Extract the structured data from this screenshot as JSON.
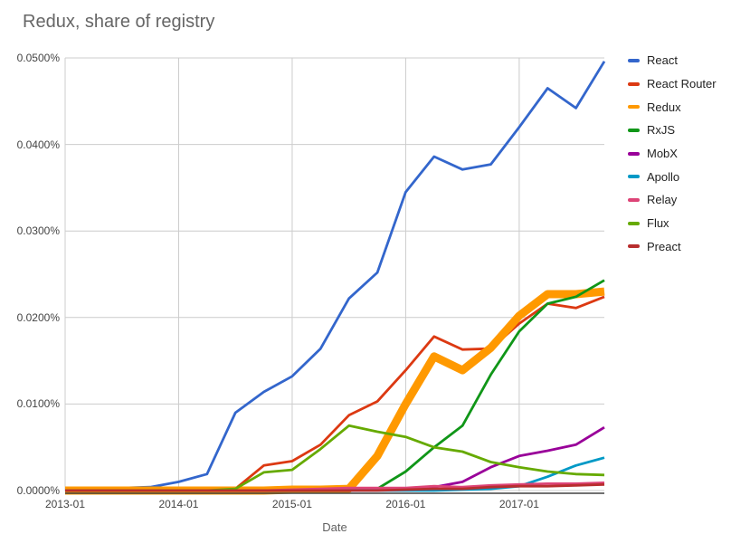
{
  "chart_data": {
    "type": "line",
    "title": "Redux, share of registry",
    "xlabel": "Date",
    "ylabel": "",
    "grid": true,
    "legend_position": "right",
    "ylim": [
      0,
      0.05
    ],
    "y_ticks": [
      {
        "label": "0.0000%",
        "value": 0.0
      },
      {
        "label": "0.0100%",
        "value": 0.01
      },
      {
        "label": "0.0200%",
        "value": 0.02
      },
      {
        "label": "0.0300%",
        "value": 0.03
      },
      {
        "label": "0.0400%",
        "value": 0.04
      },
      {
        "label": "0.0500%",
        "value": 0.05
      }
    ],
    "x_ticks": [
      "2013-01",
      "2014-01",
      "2015-01",
      "2016-01",
      "2017-01"
    ],
    "x_range": [
      "2013-01",
      "2017-10"
    ],
    "categories": [
      "2013-01",
      "2013-04",
      "2013-07",
      "2013-10",
      "2014-01",
      "2014-04",
      "2014-07",
      "2014-10",
      "2015-01",
      "2015-04",
      "2015-07",
      "2015-10",
      "2016-01",
      "2016-04",
      "2016-07",
      "2016-10",
      "2017-01",
      "2017-04",
      "2017-07",
      "2017-10"
    ],
    "value_unit": "percent_of_registry",
    "series": [
      {
        "name": "React",
        "color": "#3366cc",
        "line_width": 2.8,
        "values": [
          0.0001,
          0.0002,
          0.0003,
          0.0004,
          0.001,
          0.0019,
          0.009,
          0.0114,
          0.0132,
          0.0164,
          0.0222,
          0.0252,
          0.0345,
          0.0386,
          0.0371,
          0.0377,
          0.042,
          0.0465,
          0.0442,
          0.0496
        ]
      },
      {
        "name": "React Router",
        "color": "#dc3912",
        "line_width": 2.8,
        "values": [
          0.0,
          0.0,
          0.0,
          0.0,
          0.0001,
          0.0001,
          0.0002,
          0.0029,
          0.0034,
          0.0053,
          0.0087,
          0.0103,
          0.0139,
          0.0178,
          0.0163,
          0.0164,
          0.0193,
          0.0216,
          0.0211,
          0.0224
        ]
      },
      {
        "name": "Redux",
        "color": "#ff9900",
        "line_width": 9,
        "values": [
          0.0,
          0.0,
          0.0,
          0.0,
          0.0,
          0.0,
          0.0,
          0.0,
          0.0001,
          0.0001,
          0.0002,
          0.004,
          0.01,
          0.0155,
          0.0139,
          0.0165,
          0.0202,
          0.0227,
          0.0227,
          0.023
        ]
      },
      {
        "name": "RxJS",
        "color": "#109618",
        "line_width": 2.8,
        "values": [
          0.0,
          0.0,
          0.0,
          0.0,
          0.0,
          0.0,
          0.0,
          0.0,
          0.0,
          0.0,
          0.0001,
          0.0002,
          0.0022,
          0.005,
          0.0075,
          0.0134,
          0.0184,
          0.0216,
          0.0224,
          0.0243
        ]
      },
      {
        "name": "MobX",
        "color": "#990099",
        "line_width": 2.8,
        "values": [
          0.0,
          0.0,
          0.0,
          0.0,
          0.0,
          0.0,
          0.0,
          0.0,
          0.0,
          0.0,
          0.0,
          0.0001,
          0.0001,
          0.0004,
          0.001,
          0.0027,
          0.004,
          0.0046,
          0.0053,
          0.0073
        ]
      },
      {
        "name": "Apollo",
        "color": "#0099c6",
        "line_width": 2.8,
        "values": [
          0.0,
          0.0,
          0.0,
          0.0,
          0.0,
          0.0,
          0.0,
          0.0,
          0.0,
          0.0,
          0.0,
          0.0,
          0.0,
          0.0,
          0.0001,
          0.0002,
          0.0005,
          0.0016,
          0.0029,
          0.0038
        ]
      },
      {
        "name": "Relay",
        "color": "#dd4477",
        "line_width": 2.8,
        "values": [
          0.0,
          0.0,
          0.0,
          0.0,
          0.0,
          0.0,
          0.0,
          0.0,
          0.0001,
          0.0002,
          0.0003,
          0.0003,
          0.0003,
          0.0005,
          0.0004,
          0.0006,
          0.0007,
          0.0008,
          0.0008,
          0.0009
        ]
      },
      {
        "name": "Flux",
        "color": "#66aa00",
        "line_width": 2.8,
        "values": [
          0.0,
          0.0,
          0.0,
          0.0,
          0.0,
          0.0,
          0.0002,
          0.0021,
          0.0024,
          0.0048,
          0.0075,
          0.0068,
          0.0062,
          0.005,
          0.0045,
          0.0033,
          0.0027,
          0.0022,
          0.0019,
          0.0018
        ]
      },
      {
        "name": "Preact",
        "color": "#b82e2e",
        "line_width": 2.8,
        "values": [
          0.0,
          0.0,
          0.0,
          0.0,
          0.0,
          0.0,
          0.0,
          0.0,
          0.0,
          0.0,
          0.0,
          0.0,
          0.0001,
          0.0002,
          0.0002,
          0.0004,
          0.0005,
          0.0005,
          0.0006,
          0.0007
        ]
      }
    ],
    "colors": {
      "gridline": "#cccccc",
      "axis_line": "#424242",
      "tick_label": "#444444",
      "title_text": "#666666",
      "legend_text": "#222222"
    }
  }
}
